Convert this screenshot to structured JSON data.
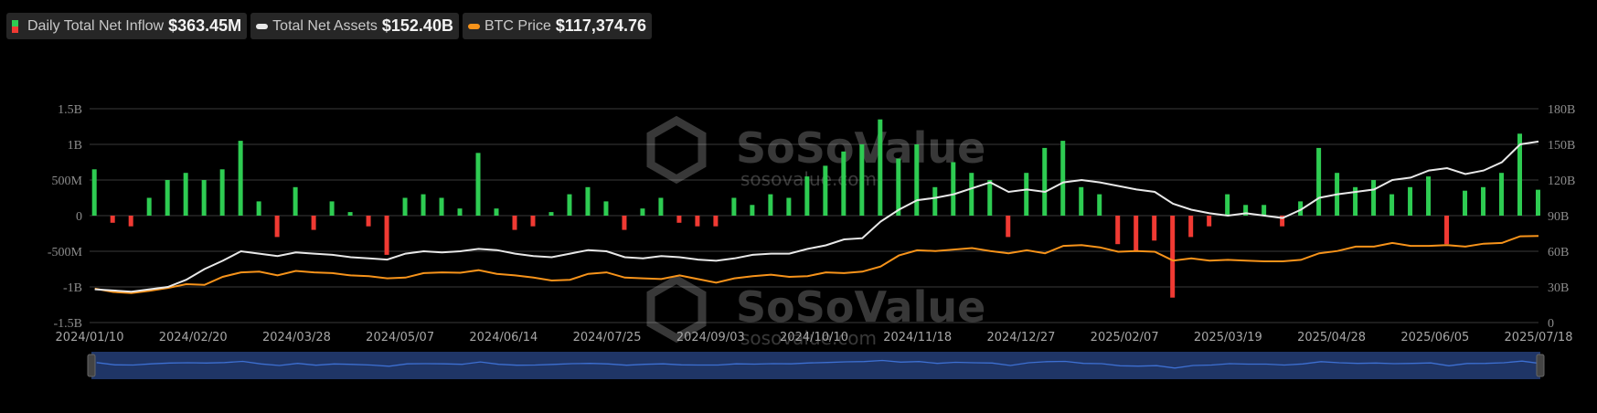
{
  "legend": [
    {
      "label": "Daily Total Net Inflow",
      "value": "$363.45M",
      "colors": [
        "#2ecc52",
        "#f03a33"
      ]
    },
    {
      "label": "Total Net Assets",
      "value": "$152.40B",
      "color": "#e8e8e8"
    },
    {
      "label": "BTC Price",
      "value": "$117,374.76",
      "color": "#f7931a"
    }
  ],
  "watermark": {
    "brand": "SoSoValue",
    "site": "sosovalue.com"
  },
  "chart_data": {
    "type": "bar+line",
    "title": "",
    "x_tick_labels": [
      "2024/01/10",
      "2024/02/20",
      "2024/03/28",
      "2024/05/07",
      "2024/06/14",
      "2024/07/25",
      "2024/09/03",
      "2024/10/10",
      "2024/11/18",
      "2024/12/27",
      "2025/02/07",
      "2025/03/19",
      "2025/04/28",
      "2025/06/05",
      "2025/07/18"
    ],
    "x_range": [
      "2024-01-10",
      "2025-07-18"
    ],
    "left_axis": {
      "ticks": [
        "1.5B",
        "1B",
        "500M",
        "0",
        "-500M",
        "-1B",
        "-1.5B"
      ],
      "range_usd": [
        -1500000000,
        1500000000
      ]
    },
    "right_axis": {
      "ticks": [
        "180B",
        "150B",
        "120B",
        "90B",
        "60B",
        "30B",
        "0"
      ],
      "range_usd_billions": [
        0,
        180
      ]
    },
    "price_axis_range_usd": [
      0,
      290000
    ],
    "grid": true,
    "legend_placement": "top-left",
    "x": [
      "2024-01-12",
      "2024-01-19",
      "2024-01-26",
      "2024-02-02",
      "2024-02-09",
      "2024-02-16",
      "2024-02-23",
      "2024-03-01",
      "2024-03-08",
      "2024-03-15",
      "2024-03-22",
      "2024-03-29",
      "2024-04-05",
      "2024-04-12",
      "2024-04-19",
      "2024-04-26",
      "2024-05-03",
      "2024-05-10",
      "2024-05-17",
      "2024-05-24",
      "2024-05-31",
      "2024-06-07",
      "2024-06-14",
      "2024-06-21",
      "2024-06-28",
      "2024-07-05",
      "2024-07-12",
      "2024-07-19",
      "2024-07-26",
      "2024-08-02",
      "2024-08-09",
      "2024-08-16",
      "2024-08-23",
      "2024-08-30",
      "2024-09-06",
      "2024-09-13",
      "2024-09-20",
      "2024-09-27",
      "2024-10-04",
      "2024-10-11",
      "2024-10-18",
      "2024-10-25",
      "2024-11-01",
      "2024-11-08",
      "2024-11-15",
      "2024-11-22",
      "2024-11-29",
      "2024-12-06",
      "2024-12-13",
      "2024-12-20",
      "2024-12-27",
      "2025-01-03",
      "2025-01-10",
      "2025-01-17",
      "2025-01-24",
      "2025-01-31",
      "2025-02-07",
      "2025-02-14",
      "2025-02-21",
      "2025-02-28",
      "2025-03-07",
      "2025-03-14",
      "2025-03-21",
      "2025-03-28",
      "2025-04-04",
      "2025-04-11",
      "2025-04-18",
      "2025-04-25",
      "2025-05-02",
      "2025-05-09",
      "2025-05-16",
      "2025-05-23",
      "2025-05-30",
      "2025-06-06",
      "2025-06-13",
      "2025-06-20",
      "2025-06-27",
      "2025-07-04",
      "2025-07-11",
      "2025-07-18"
    ],
    "series": [
      {
        "name": "Daily Total Net Inflow",
        "type": "bar",
        "unit": "USD millions",
        "values": [
          650,
          -100,
          -150,
          250,
          500,
          600,
          500,
          650,
          1050,
          200,
          -300,
          400,
          -200,
          200,
          50,
          -150,
          -550,
          250,
          300,
          250,
          100,
          880,
          100,
          -200,
          -150,
          50,
          300,
          400,
          200,
          -200,
          100,
          250,
          -100,
          -150,
          -150,
          250,
          150,
          300,
          250,
          550,
          700,
          900,
          1000,
          1350,
          800,
          1000,
          400,
          750,
          600,
          500,
          -300,
          600,
          950,
          1050,
          400,
          300,
          -400,
          -500,
          -350,
          -1150,
          -300,
          -150,
          300,
          150,
          150,
          -150,
          200,
          950,
          600,
          400,
          500,
          300,
          400,
          550,
          -400,
          350,
          400,
          600,
          1150,
          363.45
        ]
      },
      {
        "name": "Total Net Assets",
        "type": "line",
        "unit": "USD billions",
        "values": [
          28,
          27,
          26,
          28,
          30,
          36,
          45,
          52,
          60,
          58,
          56,
          59,
          58,
          57,
          55,
          54,
          53,
          58,
          60,
          59,
          60,
          62,
          61,
          58,
          56,
          55,
          58,
          61,
          60,
          55,
          54,
          56,
          55,
          53,
          52,
          54,
          57,
          58,
          58,
          62,
          65,
          70,
          71,
          85,
          95,
          103,
          105,
          108,
          113,
          118,
          110,
          112,
          110,
          118,
          120,
          118,
          115,
          112,
          110,
          100,
          95,
          92,
          90,
          92,
          90,
          88,
          95,
          105,
          108,
          110,
          112,
          120,
          122,
          128,
          130,
          125,
          128,
          135,
          150,
          152.4
        ]
      },
      {
        "name": "BTC Price",
        "type": "line",
        "unit": "USD",
        "values": [
          46000,
          41500,
          40000,
          43000,
          47000,
          52000,
          51000,
          62000,
          68000,
          69000,
          64000,
          70000,
          68000,
          67000,
          64000,
          63000,
          60000,
          61000,
          67000,
          68000,
          67500,
          71000,
          66000,
          64000,
          61000,
          57000,
          58000,
          66000,
          68000,
          61000,
          60000,
          59000,
          64000,
          59000,
          54000,
          60000,
          63000,
          65000,
          62000,
          63000,
          68000,
          67000,
          69000,
          76000,
          91000,
          98000,
          97000,
          99000,
          101000,
          97000,
          94000,
          98000,
          94000,
          104000,
          105000,
          102000,
          96000,
          97000,
          96000,
          84000,
          87000,
          84000,
          85000,
          84000,
          83000,
          83000,
          85000,
          94000,
          97000,
          103000,
          103000,
          108000,
          104000,
          104000,
          105000,
          103000,
          107000,
          108000,
          117000,
          117374.76
        ]
      }
    ],
    "colors": {
      "positive": "#2ecc52",
      "negative": "#f03a33",
      "assets": "#e8e8e8",
      "price": "#f7931a",
      "grid": "#3a3a3a",
      "zoom_fill": "#1f3566",
      "zoom_line": "#3d6fd1"
    }
  }
}
